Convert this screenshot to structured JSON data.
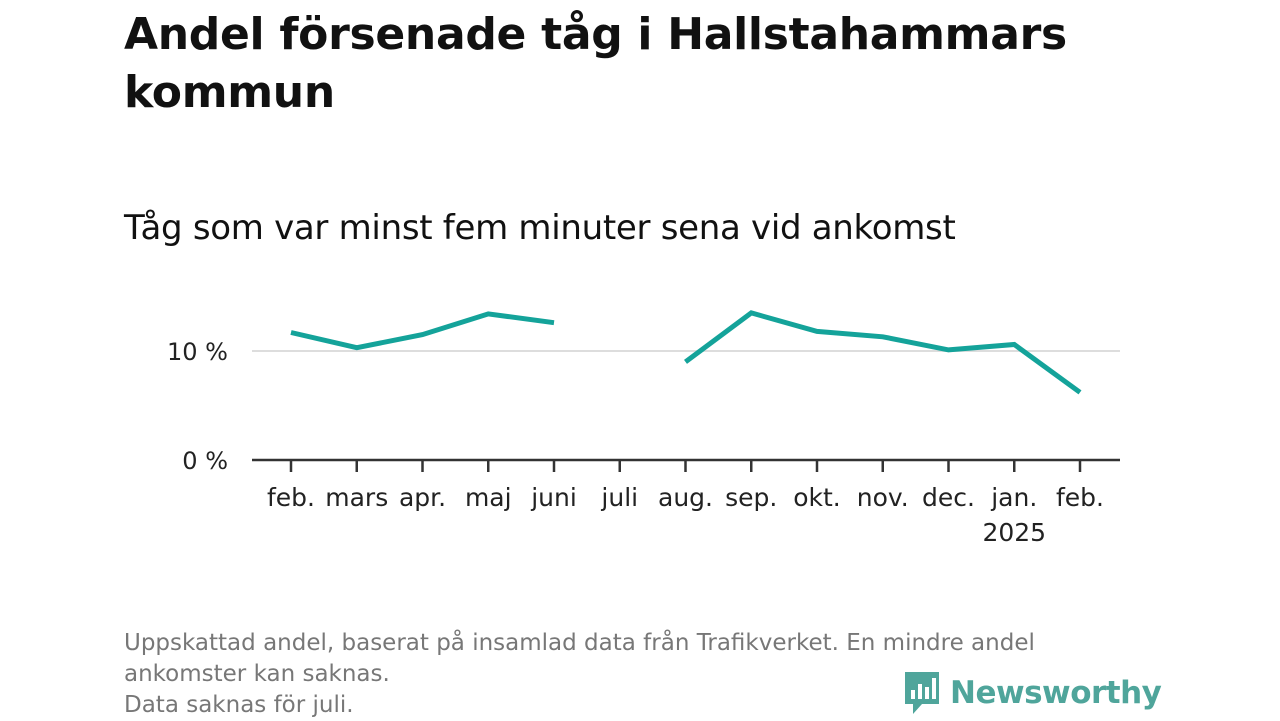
{
  "title": "Andel försenade tåg i Hallstahammars kommun",
  "subtitle": "Tåg som var minst fem minuter sena vid ankomst",
  "chart_data": {
    "type": "line",
    "categories": [
      "feb.",
      "mars",
      "apr.",
      "maj",
      "juni",
      "juli",
      "aug.",
      "sep.",
      "okt.",
      "nov.",
      "dec.",
      "jan.",
      "feb."
    ],
    "year_labels": [
      "",
      "",
      "",
      "",
      "",
      "",
      "",
      "",
      "",
      "",
      "",
      "2025",
      ""
    ],
    "series": [
      {
        "values": [
          11.7,
          10.3,
          11.5,
          13.4,
          12.6,
          null,
          9.0,
          13.5,
          11.8,
          11.3,
          10.1,
          10.6,
          6.2
        ],
        "color": "#14a39a"
      }
    ],
    "yticks": [
      0,
      10
    ],
    "ytick_labels": [
      "0 %",
      "10 %"
    ],
    "ylim": [
      0,
      16
    ],
    "gridlines": true,
    "gridline_color": "#dddddd",
    "axis_color": "#333333"
  },
  "footnote": {
    "line1": "Uppskattad andel, baserat på insamlad data från Trafikverket. En mindre andel ankomster kan saknas.",
    "line2": "Data saknas för juli."
  },
  "brand": {
    "name": "Newsworthy",
    "icon": "newsworthy-logo-icon",
    "color": "#4fa59b"
  }
}
